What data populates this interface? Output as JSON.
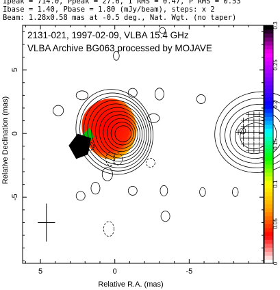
{
  "header": {
    "line1": "Ipeak = 714.0, Ppeak = 27.6, I RMS = 0.47, P RMS = 0.53",
    "line2": "Ibase = 1.40, Pbase = 1.80 (mJy/beam), steps: x 2",
    "line3": "Beam: 1.28x0.58 mas at -0.5 deg., Nat. Wgt. (no taper)"
  },
  "chart_data": {
    "type": "heatmap",
    "title": "2131-021, 1997-02-09, VLBA 15.4 GHz",
    "subtitle": "VLBA Archive BG063 processed by MOJAVE",
    "xlabel": "Relative R.A. (mas)",
    "ylabel": "Relative Declination (mas)",
    "xlim": [
      6.2,
      -10.0
    ],
    "ylim": [
      -10.2,
      8.5
    ],
    "x_ticks": [
      5,
      0,
      -5
    ],
    "y_ticks": [
      5,
      0,
      -5
    ],
    "x_ticks_tick_labels": [
      "5",
      "0",
      "-5"
    ],
    "y_ticks_tick_labels": [
      "5",
      "0",
      "-5"
    ],
    "colorbar": {
      "range": [
        0,
        0.3
      ],
      "ticks": [
        0,
        0.05,
        0.1,
        0.15,
        0.2,
        0.25,
        0.3
      ],
      "tick_labels": [
        "0",
        "0.05",
        "0.1",
        "0.15",
        "0.2",
        "0.25",
        "0.3"
      ],
      "colormap": [
        "#ffffff",
        "#ff0000",
        "#ffa000",
        "#ffff00",
        "#00ff00",
        "#00ffff",
        "#0000ff",
        "#8000ff",
        "#ff00ff",
        "#000000"
      ]
    },
    "total_intensity_core": {
      "x": -0.2,
      "y": 0.1
    },
    "polarization_panel_offset_ra": -9.5,
    "beam": {
      "major": 1.28,
      "minor": 0.58,
      "pa": -0.5
    }
  },
  "colors": {
    "axes": "#000000",
    "background": "#ffffff"
  }
}
